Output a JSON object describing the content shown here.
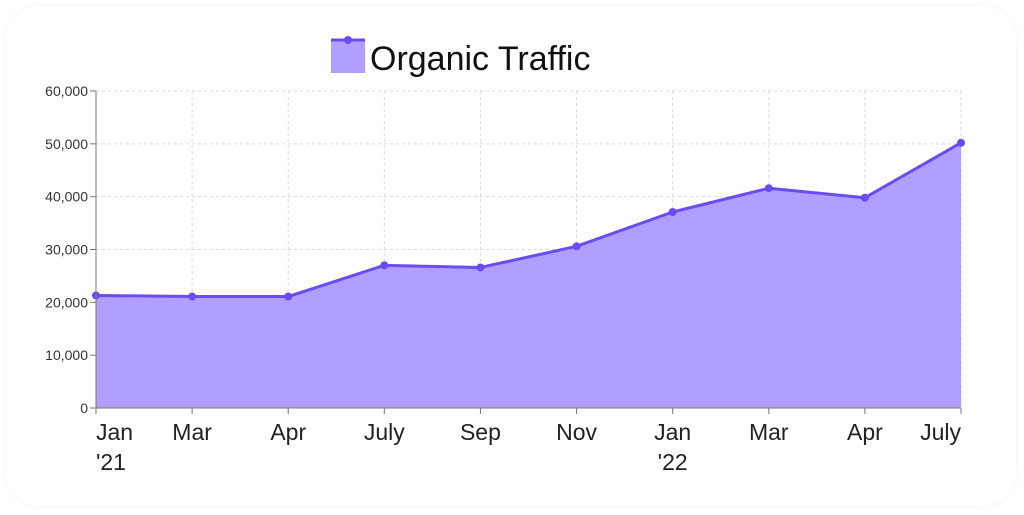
{
  "chart_data": {
    "type": "area",
    "title": "",
    "xlabel": "",
    "ylabel": "",
    "categories": [
      [
        "Jan",
        "'21"
      ],
      [
        "Mar"
      ],
      [
        "Apr"
      ],
      [
        "July"
      ],
      [
        "Sep"
      ],
      [
        "Nov"
      ],
      [
        "Jan",
        "'22"
      ],
      [
        "Mar"
      ],
      [
        "Apr"
      ],
      [
        "July"
      ]
    ],
    "series": [
      {
        "name": "Organic Traffic",
        "values": [
          21300,
          21100,
          21100,
          27000,
          26600,
          30600,
          37100,
          41600,
          39800,
          50200
        ]
      }
    ],
    "ylim": [
      0,
      60000
    ],
    "yticks": [
      "0",
      "10,000",
      "20,000",
      "30,000",
      "40,000",
      "50,000",
      "60,000"
    ],
    "grid": true,
    "legend_position": "top-center",
    "colors": {
      "line": "#6a4cf0",
      "fill": "#b09fff",
      "grid": "#d9d9d9",
      "axis": "#777777"
    }
  }
}
